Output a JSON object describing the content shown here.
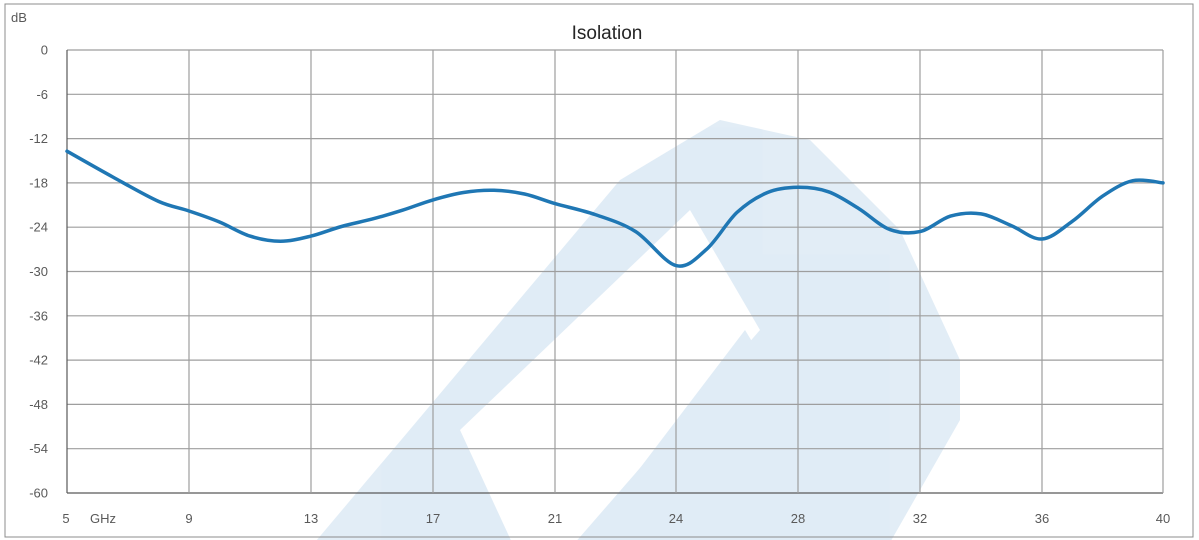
{
  "chart_data": {
    "type": "line",
    "title": "Isolation",
    "ylabel": "dB",
    "xlabel": "GHz",
    "ylim": [
      -60,
      0
    ],
    "y_ticks": [
      "0",
      "-6",
      "-12",
      "-18",
      "-24",
      "-30",
      "-36",
      "-42",
      "-48",
      "-54",
      "-60"
    ],
    "x_ticks": [
      "5",
      "9",
      "13",
      "17",
      "21",
      "24",
      "28",
      "32",
      "36",
      "40"
    ],
    "grid": true,
    "line_color": "#1f77b4",
    "series": [
      {
        "x": [
          5,
          6.5,
          8,
          9,
          10,
          11,
          12,
          13,
          14,
          15,
          16,
          17,
          18,
          19,
          20,
          21,
          22,
          23,
          24,
          25,
          26,
          27,
          28,
          29,
          30,
          31,
          32,
          33,
          34,
          35,
          36,
          37,
          38,
          39,
          40
        ],
        "values": [
          -13.7,
          -17.2,
          -20.5,
          -21.8,
          -23.3,
          -25.2,
          -25.9,
          -25.2,
          -23.9,
          -22.9,
          -21.7,
          -20.3,
          -19.3,
          -19.0,
          -19.5,
          -20.8,
          -22.3,
          -24.6,
          -29.2,
          -27.0,
          -22.0,
          -19.3,
          -18.6,
          -19.2,
          -21.5,
          -24.3,
          -24.6,
          -22.5,
          -22.2,
          -23.8,
          -25.6,
          -23.2,
          -19.8,
          -17.7,
          -18.0
        ]
      }
    ]
  }
}
